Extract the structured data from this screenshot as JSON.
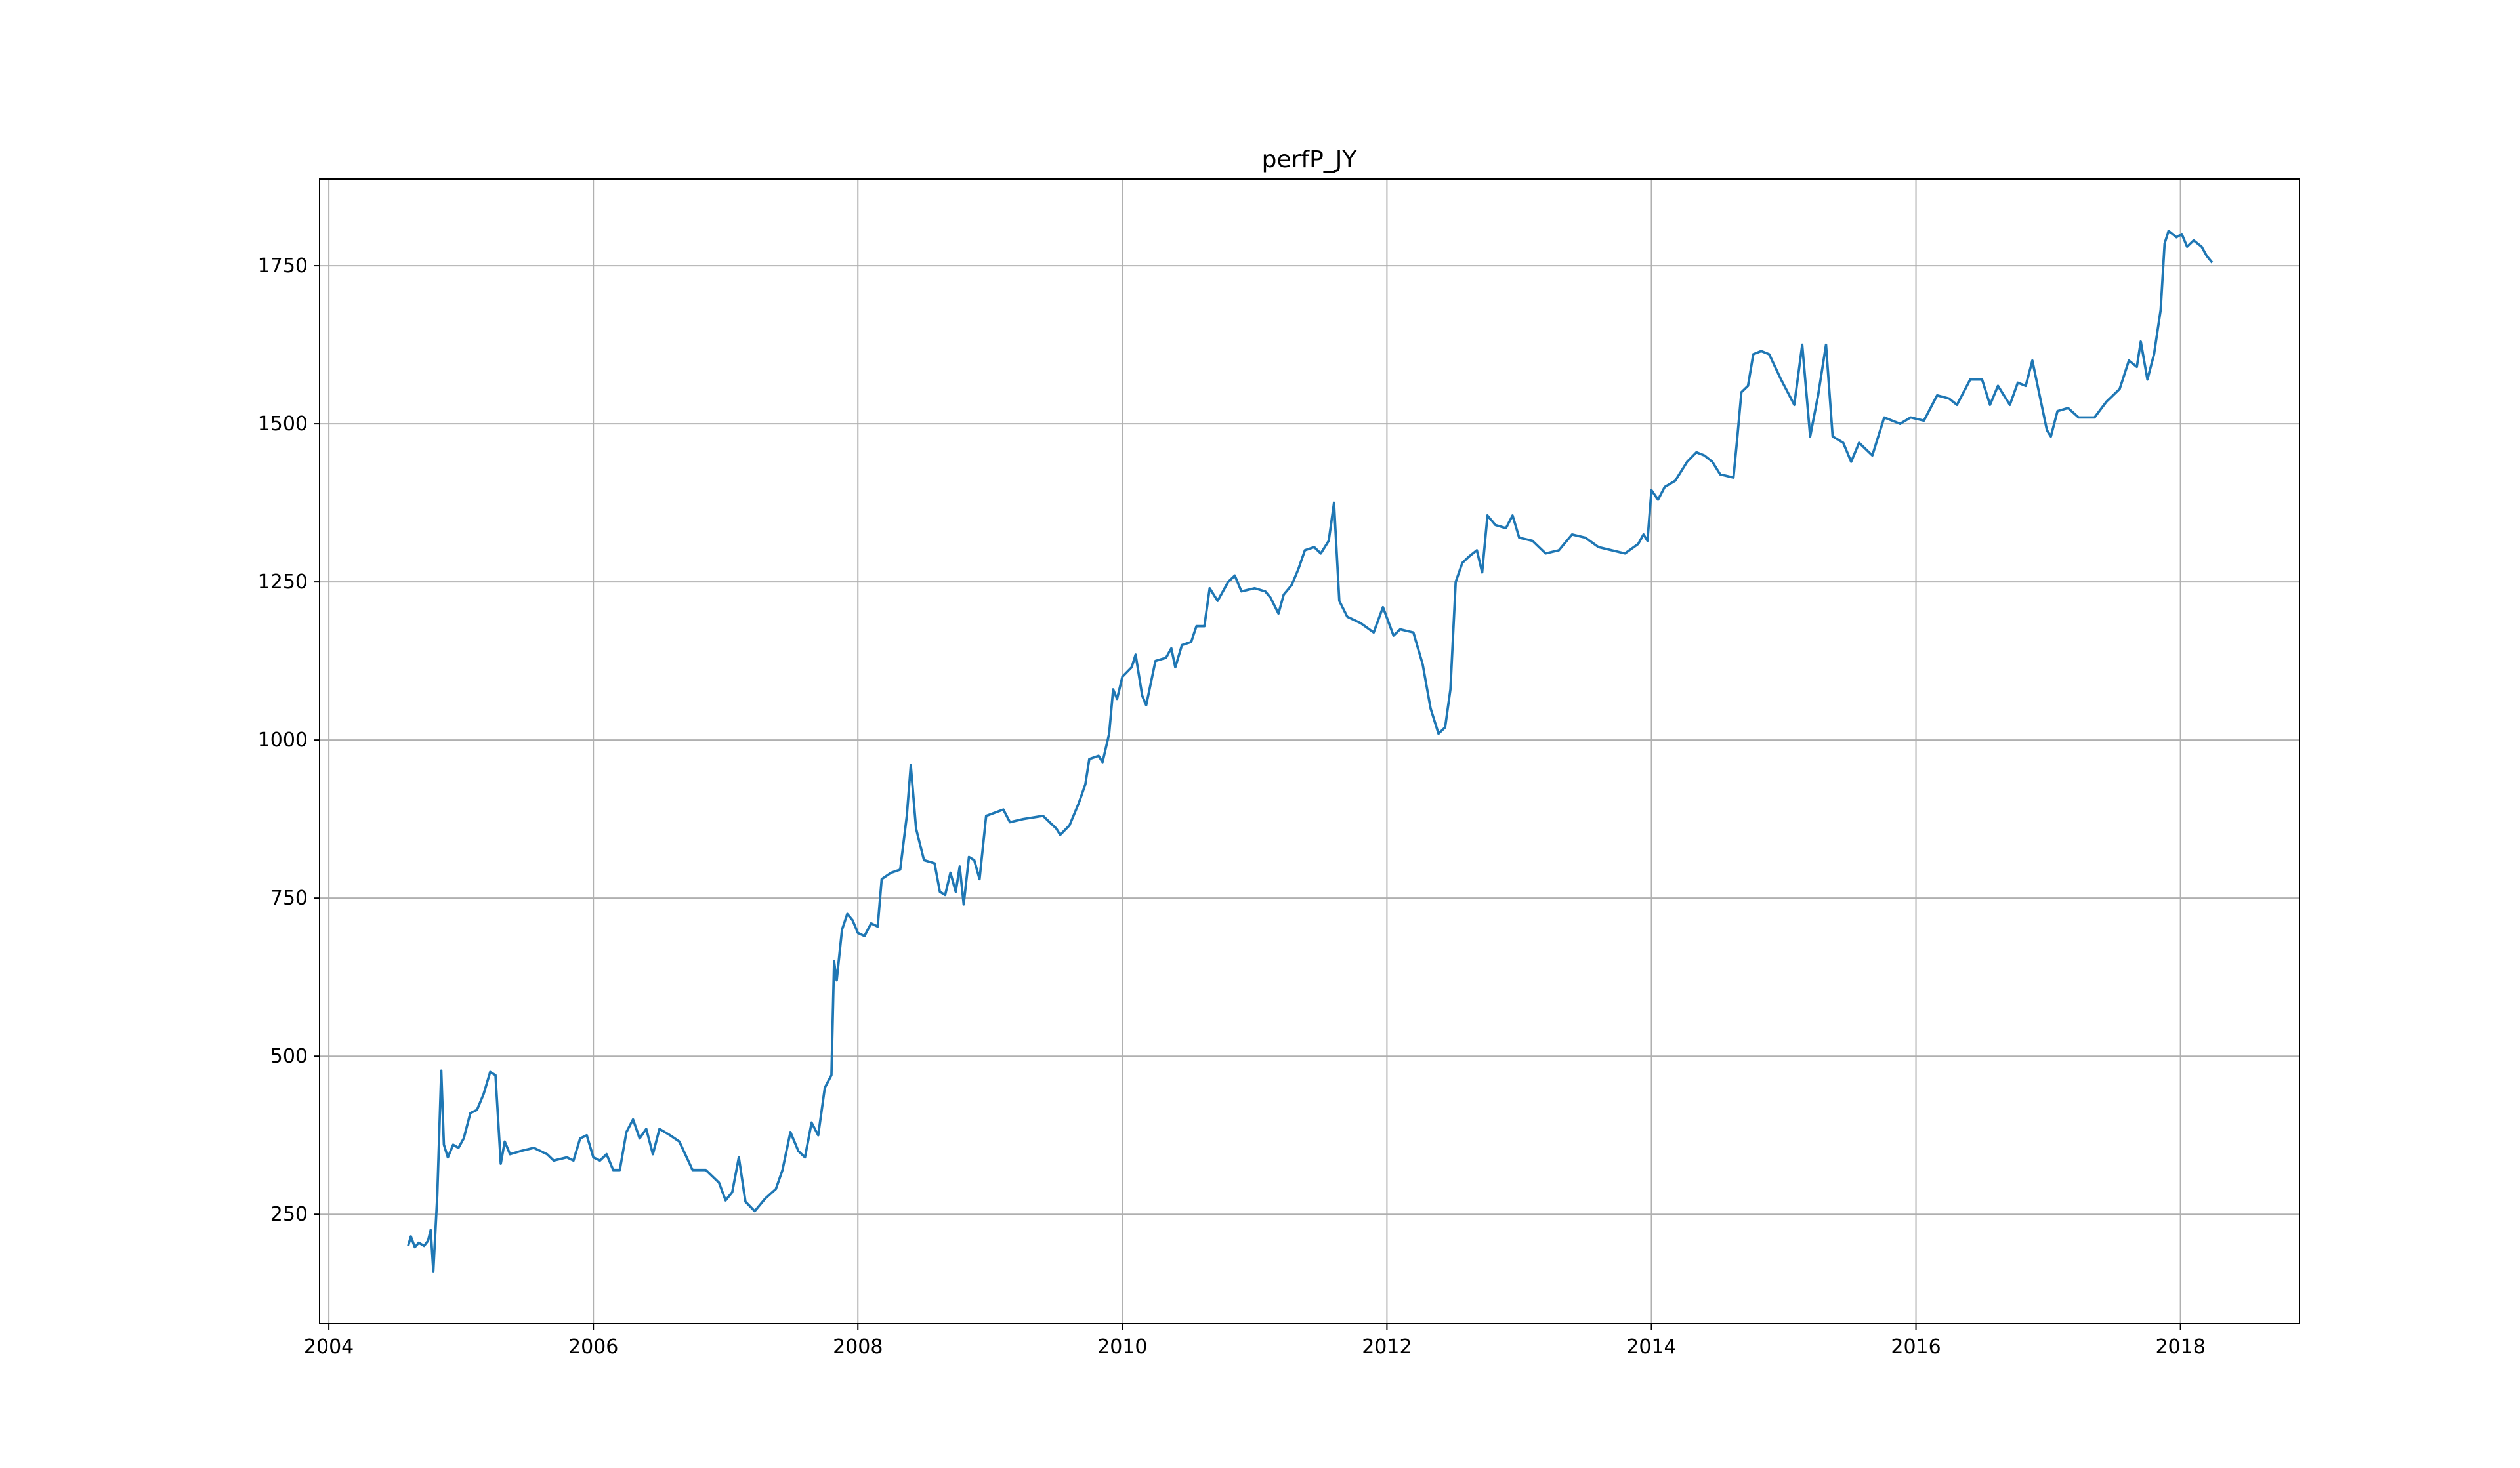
{
  "chart_data": {
    "type": "line",
    "title": "perfP_JY",
    "color": "#1f77b4",
    "grid": true,
    "xlim": [
      2003.93,
      2018.9
    ],
    "ylim": [
      77,
      1887
    ],
    "xticks": [
      2004,
      2006,
      2008,
      2010,
      2012,
      2014,
      2016,
      2018
    ],
    "yticks": [
      250,
      500,
      750,
      1000,
      1250,
      1500,
      1750
    ],
    "x": [
      2004.6,
      2004.62,
      2004.65,
      2004.68,
      2004.72,
      2004.75,
      2004.77,
      2004.79,
      2004.82,
      2004.85,
      2004.87,
      2004.9,
      2004.94,
      2004.98,
      2005.02,
      2005.07,
      2005.12,
      2005.17,
      2005.22,
      2005.26,
      2005.3,
      2005.33,
      2005.37,
      2005.45,
      2005.55,
      2005.65,
      2005.7,
      2005.8,
      2005.85,
      2005.9,
      2005.95,
      2006.0,
      2006.05,
      2006.1,
      2006.15,
      2006.2,
      2006.25,
      2006.3,
      2006.35,
      2006.4,
      2006.45,
      2006.5,
      2006.58,
      2006.65,
      2006.75,
      2006.85,
      2006.95,
      2007.0,
      2007.05,
      2007.1,
      2007.15,
      2007.22,
      2007.3,
      2007.38,
      2007.43,
      2007.49,
      2007.55,
      2007.6,
      2007.65,
      2007.7,
      2007.75,
      2007.8,
      2007.82,
      2007.84,
      2007.88,
      2007.92,
      2007.96,
      2008.0,
      2008.05,
      2008.1,
      2008.15,
      2008.18,
      2008.25,
      2008.32,
      2008.37,
      2008.4,
      2008.44,
      2008.5,
      2008.58,
      2008.62,
      2008.66,
      2008.7,
      2008.74,
      2008.77,
      2008.8,
      2008.84,
      2008.88,
      2008.92,
      2008.97,
      2009.1,
      2009.15,
      2009.25,
      2009.4,
      2009.5,
      2009.53,
      2009.6,
      2009.67,
      2009.72,
      2009.75,
      2009.82,
      2009.85,
      2009.9,
      2009.93,
      2009.96,
      2010.0,
      2010.07,
      2010.1,
      2010.15,
      2010.18,
      2010.25,
      2010.33,
      2010.37,
      2010.4,
      2010.45,
      2010.52,
      2010.56,
      2010.62,
      2010.66,
      2010.72,
      2010.8,
      2010.85,
      2010.9,
      2011.0,
      2011.08,
      2011.12,
      2011.18,
      2011.22,
      2011.28,
      2011.33,
      2011.38,
      2011.45,
      2011.5,
      2011.56,
      2011.6,
      2011.64,
      2011.7,
      2011.8,
      2011.9,
      2011.97,
      2012.05,
      2012.1,
      2012.2,
      2012.27,
      2012.33,
      2012.39,
      2012.44,
      2012.48,
      2012.52,
      2012.57,
      2012.62,
      2012.68,
      2012.72,
      2012.76,
      2012.82,
      2012.9,
      2012.95,
      2013.0,
      2013.1,
      2013.2,
      2013.3,
      2013.4,
      2013.5,
      2013.6,
      2013.7,
      2013.8,
      2013.9,
      2013.94,
      2013.97,
      2014.0,
      2014.05,
      2014.1,
      2014.18,
      2014.27,
      2014.34,
      2014.4,
      2014.46,
      2014.52,
      2014.62,
      2014.65,
      2014.68,
      2014.73,
      2014.77,
      2014.83,
      2014.89,
      2014.98,
      2015.08,
      2015.14,
      2015.2,
      2015.26,
      2015.32,
      2015.37,
      2015.45,
      2015.51,
      2015.57,
      2015.67,
      2015.76,
      2015.88,
      2015.96,
      2016.06,
      2016.16,
      2016.25,
      2016.31,
      2016.41,
      2016.5,
      2016.56,
      2016.62,
      2016.71,
      2016.77,
      2016.83,
      2016.88,
      2016.93,
      2016.99,
      2017.02,
      2017.07,
      2017.15,
      2017.23,
      2017.35,
      2017.44,
      2017.54,
      2017.61,
      2017.67,
      2017.7,
      2017.75,
      2017.8,
      2017.85,
      2017.88,
      2017.91,
      2017.97,
      2018.01,
      2018.05,
      2018.1,
      2018.16,
      2018.2,
      2018.24
    ],
    "values": [
      200,
      215,
      198,
      205,
      200,
      208,
      225,
      160,
      280,
      477,
      360,
      340,
      360,
      355,
      370,
      410,
      415,
      440,
      475,
      470,
      330,
      365,
      345,
      350,
      355,
      345,
      335,
      340,
      335,
      370,
      375,
      340,
      335,
      345,
      320,
      320,
      380,
      400,
      370,
      385,
      345,
      385,
      375,
      365,
      320,
      320,
      300,
      272,
      285,
      340,
      270,
      255,
      275,
      290,
      320,
      380,
      350,
      340,
      395,
      375,
      450,
      470,
      650,
      620,
      700,
      725,
      715,
      695,
      690,
      710,
      705,
      780,
      790,
      795,
      880,
      960,
      860,
      810,
      805,
      760,
      755,
      790,
      760,
      800,
      740,
      815,
      810,
      780,
      880,
      890,
      870,
      875,
      880,
      860,
      850,
      865,
      900,
      930,
      970,
      975,
      965,
      1010,
      1080,
      1065,
      1100,
      1115,
      1135,
      1070,
      1055,
      1125,
      1130,
      1145,
      1115,
      1150,
      1155,
      1180,
      1180,
      1240,
      1220,
      1250,
      1260,
      1235,
      1240,
      1235,
      1225,
      1200,
      1230,
      1245,
      1270,
      1300,
      1305,
      1295,
      1315,
      1375,
      1220,
      1195,
      1185,
      1170,
      1210,
      1165,
      1175,
      1170,
      1120,
      1050,
      1010,
      1020,
      1080,
      1250,
      1280,
      1290,
      1300,
      1265,
      1355,
      1340,
      1335,
      1355,
      1320,
      1315,
      1295,
      1300,
      1325,
      1320,
      1305,
      1300,
      1295,
      1310,
      1325,
      1315,
      1395,
      1380,
      1400,
      1410,
      1440,
      1455,
      1450,
      1440,
      1420,
      1415,
      1480,
      1550,
      1560,
      1610,
      1615,
      1610,
      1570,
      1530,
      1625,
      1480,
      1545,
      1625,
      1480,
      1470,
      1440,
      1470,
      1450,
      1510,
      1500,
      1510,
      1505,
      1545,
      1540,
      1530,
      1570,
      1570,
      1530,
      1560,
      1530,
      1565,
      1560,
      1600,
      1550,
      1490,
      1480,
      1520,
      1525,
      1510,
      1510,
      1535,
      1555,
      1600,
      1590,
      1630,
      1570,
      1610,
      1680,
      1785,
      1805,
      1795,
      1800,
      1780,
      1790,
      1780,
      1765,
      1755
    ]
  }
}
